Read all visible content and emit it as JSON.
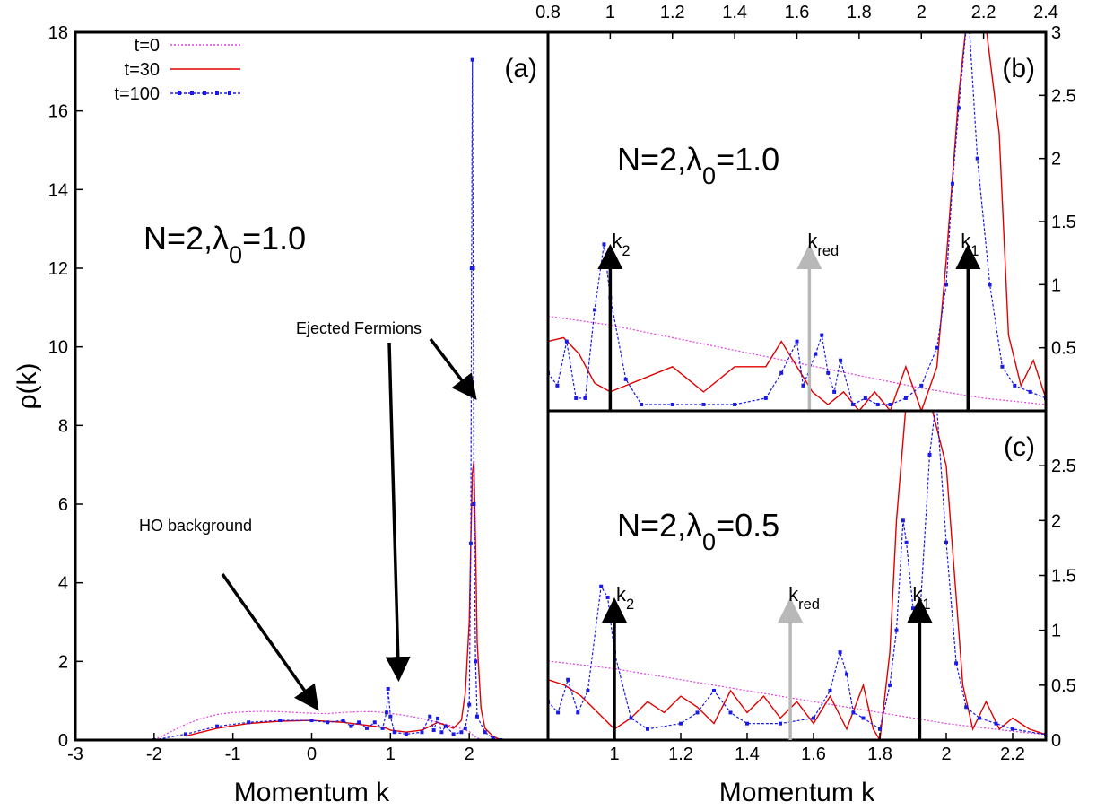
{
  "colors": {
    "t0": "#e040e0",
    "t30": "#e00000",
    "t100": "#1a1ae6",
    "grey_arrow": "#b8b8b8",
    "black": "#000000"
  },
  "chart_data": [
    {
      "id": "a",
      "type": "line",
      "panel_label": "(a)",
      "xlabel": "Momentum k",
      "ylabel": "ρ(k)",
      "xlim": [
        -3,
        3
      ],
      "ylim": [
        0,
        18
      ],
      "xticks": [
        -3,
        -2,
        -1,
        0,
        1,
        2
      ],
      "yticks": [
        0,
        2,
        4,
        6,
        8,
        10,
        12,
        14,
        16,
        18
      ],
      "legend": {
        "placement": "top-left",
        "entries": [
          "t=0",
          "t=30",
          "t=100"
        ]
      },
      "annotation": {
        "prefix": "N=2,λ",
        "sub": "0",
        "suffix": "=1.0"
      },
      "callouts": [
        {
          "text": "Ejected Fermions",
          "targets": [
            [
              1.1,
              1.8
            ],
            [
              2.0,
              8.9
            ]
          ]
        },
        {
          "text": "HO background",
          "targets": [
            [
              0.0,
              1.0
            ]
          ]
        }
      ],
      "series": [
        {
          "name": "t=0",
          "x": [
            -2.0,
            -1.8,
            -1.6,
            -1.4,
            -1.2,
            -1.0,
            -0.8,
            -0.6,
            -0.4,
            -0.2,
            0.0,
            0.2,
            0.4,
            0.6,
            0.8,
            1.0,
            1.2,
            1.4,
            1.6,
            1.8,
            2.0,
            2.05,
            2.1,
            2.2
          ],
          "y": [
            0.0,
            0.2,
            0.4,
            0.55,
            0.65,
            0.7,
            0.72,
            0.73,
            0.72,
            0.7,
            0.68,
            0.67,
            0.7,
            0.72,
            0.72,
            0.68,
            0.62,
            0.55,
            0.45,
            0.35,
            0.22,
            0.12,
            0.05,
            0.0
          ]
        },
        {
          "name": "t=30",
          "x": [
            -1.6,
            -1.2,
            -0.8,
            -0.4,
            0.0,
            0.4,
            0.8,
            0.95,
            1.0,
            1.2,
            1.4,
            1.5,
            1.6,
            1.8,
            1.9,
            1.95,
            2.0,
            2.02,
            2.04,
            2.06,
            2.08,
            2.1,
            2.15,
            2.2,
            2.3,
            2.4
          ],
          "y": [
            0.1,
            0.3,
            0.42,
            0.48,
            0.5,
            0.45,
            0.35,
            0.3,
            0.25,
            0.2,
            0.25,
            0.35,
            0.45,
            0.3,
            0.5,
            1.2,
            3.0,
            5.0,
            6.8,
            7.1,
            5.0,
            2.5,
            0.8,
            0.3,
            0.1,
            0.0
          ]
        },
        {
          "name": "t=100",
          "x": [
            -2.0,
            -1.6,
            -1.2,
            -0.8,
            -0.4,
            0.0,
            0.2,
            0.4,
            0.5,
            0.6,
            0.7,
            0.8,
            0.9,
            0.95,
            0.97,
            1.0,
            1.05,
            1.2,
            1.4,
            1.5,
            1.55,
            1.6,
            1.65,
            1.7,
            1.8,
            1.9,
            1.95,
            2.0,
            2.02,
            2.03,
            2.04,
            2.05,
            2.06,
            2.08,
            2.1,
            2.2,
            2.3,
            2.4
          ],
          "y": [
            0.0,
            0.15,
            0.35,
            0.45,
            0.5,
            0.5,
            0.45,
            0.5,
            0.35,
            0.45,
            0.3,
            0.45,
            0.3,
            0.7,
            1.3,
            0.6,
            0.2,
            0.15,
            0.2,
            0.6,
            0.25,
            0.55,
            0.2,
            0.35,
            0.15,
            0.2,
            0.3,
            0.9,
            5.0,
            12.0,
            17.3,
            12.0,
            6.0,
            2.0,
            0.6,
            0.2,
            0.05,
            0.0
          ]
        }
      ]
    },
    {
      "id": "b",
      "type": "line",
      "panel_label": "(b)",
      "xlim": [
        0.8,
        2.4
      ],
      "ylim": [
        0,
        3
      ],
      "xticks": [
        0.8,
        1,
        1.2,
        1.4,
        1.6,
        1.8,
        2,
        2.2,
        2.4
      ],
      "yticks": [
        0.5,
        1,
        1.5,
        2,
        2.5,
        3
      ],
      "annotation": {
        "prefix": "N=2,λ",
        "sub": "0",
        "suffix": "=1.0"
      },
      "arrows": [
        {
          "label": "k",
          "sub": "2",
          "x": 1.0,
          "color": "black"
        },
        {
          "label": "k",
          "sub": "red",
          "x": 1.64,
          "color": "grey"
        },
        {
          "label": "k",
          "sub": "1",
          "x": 2.15,
          "color": "black"
        }
      ],
      "series": [
        {
          "name": "t=0",
          "x": [
            0.8,
            1.0,
            1.2,
            1.4,
            1.6,
            1.8,
            2.0,
            2.2,
            2.4
          ],
          "y": [
            0.75,
            0.68,
            0.58,
            0.48,
            0.38,
            0.28,
            0.18,
            0.1,
            0.05
          ]
        },
        {
          "name": "t=30",
          "x": [
            0.8,
            0.85,
            0.9,
            0.95,
            1.0,
            1.05,
            1.1,
            1.2,
            1.3,
            1.4,
            1.5,
            1.55,
            1.6,
            1.65,
            1.7,
            1.75,
            1.8,
            1.85,
            1.9,
            1.95,
            2.0,
            2.05,
            2.08,
            2.12,
            2.15,
            2.2,
            2.25,
            2.28,
            2.32,
            2.36,
            2.4
          ],
          "y": [
            0.55,
            0.58,
            0.45,
            0.22,
            0.15,
            0.2,
            0.25,
            0.35,
            0.15,
            0.35,
            0.35,
            0.55,
            0.35,
            0.15,
            0.05,
            0.15,
            0.0,
            0.15,
            0.0,
            0.35,
            0.0,
            0.35,
            1.2,
            2.5,
            3.2,
            3.2,
            2.2,
            0.6,
            0.2,
            0.4,
            0.1
          ]
        },
        {
          "name": "t=100",
          "x": [
            0.8,
            0.83,
            0.86,
            0.89,
            0.92,
            0.95,
            0.98,
            1.0,
            1.05,
            1.1,
            1.2,
            1.3,
            1.4,
            1.5,
            1.55,
            1.6,
            1.62,
            1.66,
            1.68,
            1.7,
            1.72,
            1.74,
            1.78,
            1.82,
            1.86,
            1.9,
            1.95,
            2.0,
            2.05,
            2.08,
            2.1,
            2.12,
            2.15,
            2.18,
            2.22,
            2.26,
            2.3,
            2.35,
            2.4
          ],
          "y": [
            0.3,
            0.2,
            0.55,
            0.1,
            0.1,
            0.8,
            1.32,
            0.9,
            0.25,
            0.05,
            0.05,
            0.05,
            0.05,
            0.1,
            0.3,
            0.55,
            0.2,
            0.45,
            0.6,
            0.3,
            0.15,
            0.4,
            0.05,
            0.1,
            0.05,
            0.05,
            0.1,
            0.2,
            0.5,
            1.0,
            1.8,
            2.4,
            3.2,
            2.0,
            1.0,
            0.35,
            0.2,
            0.15,
            0.1
          ]
        }
      ]
    },
    {
      "id": "c",
      "type": "line",
      "panel_label": "(c)",
      "xlabel": "Momentum k",
      "xlim": [
        0.8,
        2.3
      ],
      "ylim": [
        0,
        3
      ],
      "xticks": [
        1,
        1.2,
        1.4,
        1.6,
        1.8,
        2,
        2.2
      ],
      "yticks": [
        0,
        0.5,
        1,
        1.5,
        2,
        2.5
      ],
      "annotation": {
        "prefix": "N=2,λ",
        "sub": "0",
        "suffix": "=0.5"
      },
      "arrows": [
        {
          "label": "k",
          "sub": "2",
          "x": 1.0,
          "color": "black"
        },
        {
          "label": "k",
          "sub": "red",
          "x": 1.53,
          "color": "grey"
        },
        {
          "label": "k",
          "sub": "1",
          "x": 1.92,
          "color": "black"
        }
      ],
      "series": [
        {
          "name": "t=0",
          "x": [
            0.8,
            1.0,
            1.2,
            1.4,
            1.6,
            1.8,
            2.0,
            2.2,
            2.3
          ],
          "y": [
            0.72,
            0.65,
            0.55,
            0.45,
            0.35,
            0.25,
            0.15,
            0.08,
            0.05
          ]
        },
        {
          "name": "t=30",
          "x": [
            0.8,
            0.85,
            0.9,
            0.95,
            1.0,
            1.05,
            1.1,
            1.15,
            1.2,
            1.25,
            1.3,
            1.35,
            1.4,
            1.45,
            1.5,
            1.55,
            1.6,
            1.65,
            1.7,
            1.75,
            1.78,
            1.8,
            1.83,
            1.85,
            1.88,
            1.95,
            2.0,
            2.05,
            2.08,
            2.12,
            2.16,
            2.2,
            2.25,
            2.3
          ],
          "y": [
            0.55,
            0.5,
            0.4,
            0.25,
            0.1,
            0.2,
            0.35,
            0.25,
            0.4,
            0.3,
            0.15,
            0.45,
            0.25,
            0.4,
            0.2,
            0.35,
            0.15,
            0.4,
            0.1,
            0.5,
            0.1,
            0.0,
            0.8,
            2.0,
            3.1,
            3.1,
            2.5,
            0.5,
            0.1,
            0.35,
            0.1,
            0.2,
            0.1,
            0.05
          ]
        },
        {
          "name": "t=100",
          "x": [
            0.8,
            0.83,
            0.86,
            0.89,
            0.92,
            0.96,
            0.98,
            1.0,
            1.05,
            1.1,
            1.2,
            1.25,
            1.3,
            1.35,
            1.4,
            1.5,
            1.6,
            1.65,
            1.68,
            1.7,
            1.72,
            1.75,
            1.8,
            1.83,
            1.85,
            1.87,
            1.88,
            1.9,
            1.92,
            1.95,
            1.97,
            2.0,
            2.03,
            2.06,
            2.1,
            2.15,
            2.2,
            2.3
          ],
          "y": [
            0.35,
            0.25,
            0.55,
            0.25,
            0.45,
            1.4,
            1.3,
            0.8,
            0.2,
            0.1,
            0.15,
            0.25,
            0.45,
            0.25,
            0.15,
            0.15,
            0.2,
            0.45,
            0.8,
            0.6,
            0.25,
            0.2,
            0.1,
            0.5,
            1.0,
            2.0,
            1.8,
            1.2,
            1.1,
            2.6,
            3.1,
            1.8,
            0.7,
            0.3,
            0.2,
            0.15,
            0.1,
            0.05
          ]
        }
      ]
    }
  ]
}
